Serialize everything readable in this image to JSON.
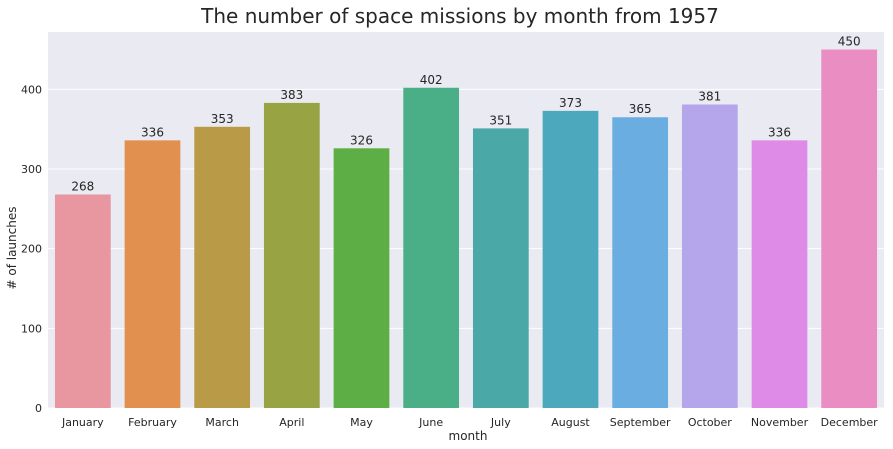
{
  "chart_data": {
    "type": "bar",
    "title": "The number of space missions by month from 1957",
    "xlabel": "month",
    "ylabel": "# of launches",
    "categories": [
      "January",
      "February",
      "March",
      "April",
      "May",
      "June",
      "July",
      "August",
      "September",
      "October",
      "November",
      "December"
    ],
    "values": [
      268,
      336,
      353,
      383,
      326,
      402,
      351,
      373,
      365,
      381,
      336,
      450
    ],
    "ylim": [
      0,
      472
    ],
    "yticks": [
      0,
      100,
      200,
      300,
      400
    ],
    "grid": true,
    "background_color": "#EAEAF2",
    "colors": [
      "#E8969F",
      "#E2904F",
      "#B99B47",
      "#98A443",
      "#5EAE46",
      "#4AAE87",
      "#4AA9A6",
      "#4BA8BD",
      "#6AADE1",
      "#B5A6EB",
      "#DD8BE7",
      "#E98DC3"
    ]
  }
}
